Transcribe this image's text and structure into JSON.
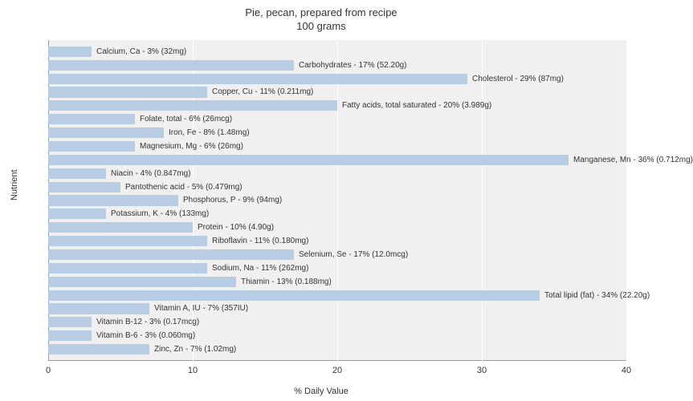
{
  "chart": {
    "type": "bar-horizontal",
    "title_line1": "Pie, pecan, prepared from recipe",
    "title_line2": "100 grams",
    "y_label": "Nutrient",
    "x_label": "% Daily Value",
    "xlim": [
      0,
      40
    ],
    "x_ticks": [
      0,
      10,
      20,
      30,
      40
    ],
    "bar_color": "#b8cce4",
    "plot_bg": "#f0f0f0",
    "grid_color": "#ffffff",
    "text_color": "#333333",
    "title_fontsize": 13,
    "label_fontsize": 11,
    "bar_label_fontsize": 10,
    "bars": [
      {
        "label": "Calcium, Ca - 3% (32mg)",
        "value": 3
      },
      {
        "label": "Carbohydrates - 17% (52.20g)",
        "value": 17
      },
      {
        "label": "Cholesterol - 29% (87mg)",
        "value": 29
      },
      {
        "label": "Copper, Cu - 11% (0.211mg)",
        "value": 11
      },
      {
        "label": "Fatty acids, total saturated - 20% (3.989g)",
        "value": 20
      },
      {
        "label": "Folate, total - 6% (26mcg)",
        "value": 6
      },
      {
        "label": "Iron, Fe - 8% (1.48mg)",
        "value": 8
      },
      {
        "label": "Magnesium, Mg - 6% (26mg)",
        "value": 6
      },
      {
        "label": "Manganese, Mn - 36% (0.712mg)",
        "value": 36
      },
      {
        "label": "Niacin - 4% (0.847mg)",
        "value": 4
      },
      {
        "label": "Pantothenic acid - 5% (0.479mg)",
        "value": 5
      },
      {
        "label": "Phosphorus, P - 9% (94mg)",
        "value": 9
      },
      {
        "label": "Potassium, K - 4% (133mg)",
        "value": 4
      },
      {
        "label": "Protein - 10% (4.90g)",
        "value": 10
      },
      {
        "label": "Riboflavin - 11% (0.180mg)",
        "value": 11
      },
      {
        "label": "Selenium, Se - 17% (12.0mcg)",
        "value": 17
      },
      {
        "label": "Sodium, Na - 11% (262mg)",
        "value": 11
      },
      {
        "label": "Thiamin - 13% (0.188mg)",
        "value": 13
      },
      {
        "label": "Total lipid (fat) - 34% (22.20g)",
        "value": 34
      },
      {
        "label": "Vitamin A, IU - 7% (357IU)",
        "value": 7
      },
      {
        "label": "Vitamin B-12 - 3% (0.17mcg)",
        "value": 3
      },
      {
        "label": "Vitamin B-6 - 3% (0.060mg)",
        "value": 3
      },
      {
        "label": "Zinc, Zn - 7% (1.02mg)",
        "value": 7
      }
    ]
  }
}
